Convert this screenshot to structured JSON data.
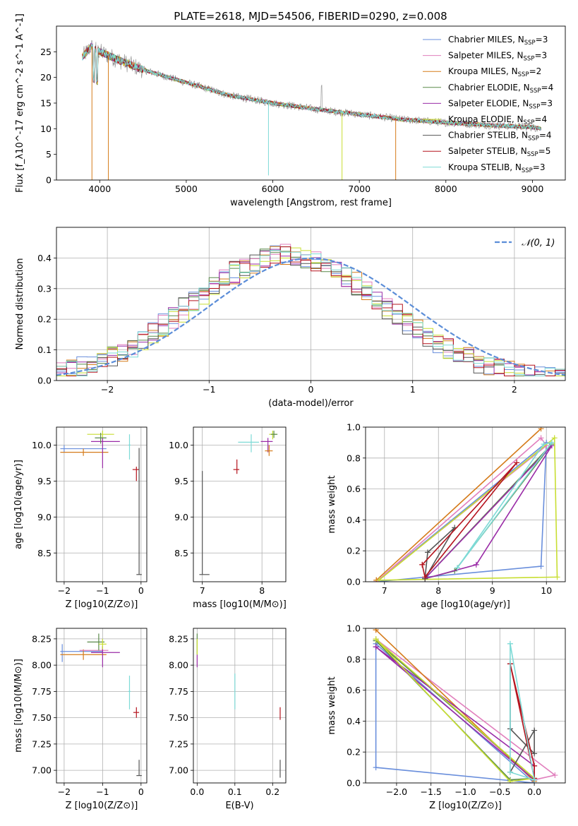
{
  "figure": {
    "title": "PLATE=2618, MJD=54506, FIBERID=0290, z=0.008"
  },
  "colors": {
    "Chabrier MILES": "#6a8fdc",
    "Salpeter MILES": "#e17fbd",
    "Kroupa MILES": "#d57b1a",
    "Chabrier ELODIE": "#5a8a4a",
    "Salpeter ELODIE": "#9a2ca7",
    "Kroupa ELODIE": "#c8de32",
    "Chabrier STELIB": "#555555",
    "Salpeter STELIB": "#b5141e",
    "Kroupa STELIB": "#7ddad6",
    "data": "#8c8c8c",
    "normal": "#5b8dd8"
  },
  "chart_data": [
    {
      "id": "spectrum",
      "type": "line",
      "xlabel": "wavelength [Angstrom, rest frame]",
      "ylabel": "Flux [f_λ10^-17 erg cm^-2 s^-1 A^-1]",
      "xlim": [
        3500,
        9380
      ],
      "ylim": [
        0,
        30
      ],
      "xticks": [
        4000,
        5000,
        6000,
        7000,
        8000,
        9000
      ],
      "yticks": [
        0,
        5,
        10,
        15,
        20,
        25
      ],
      "grid": false,
      "legend_position": "top-right",
      "legend": [
        {
          "model": "Chabrier MILES",
          "nssp": 3
        },
        {
          "model": "Salpeter MILES",
          "nssp": 3
        },
        {
          "model": "Kroupa MILES",
          "nssp": 2
        },
        {
          "model": "Chabrier ELODIE",
          "nssp": 4
        },
        {
          "model": "Salpeter ELODIE",
          "nssp": 3
        },
        {
          "model": "Kroupa ELODIE",
          "nssp": 4
        },
        {
          "model": "Chabrier STELIB",
          "nssp": 4
        },
        {
          "model": "Salpeter STELIB",
          "nssp": 5
        },
        {
          "model": "Kroupa STELIB",
          "nssp": 3
        }
      ],
      "continuum": {
        "x": [
          3800,
          3900,
          4000,
          4200,
          4500,
          5000,
          5500,
          6000,
          6500,
          7000,
          7500,
          8000,
          8500,
          9000,
          9100
        ],
        "y": [
          24,
          26,
          25,
          23.5,
          21.5,
          19,
          16.5,
          15,
          13.8,
          12.8,
          11.8,
          11.2,
          10.7,
          10.3,
          10.0
        ]
      }
    },
    {
      "id": "residuals",
      "type": "histogram",
      "xlabel": "(data-model)/error",
      "ylabel": "Normed distribution",
      "xlim": [
        -2.5,
        2.5
      ],
      "ylim": [
        0,
        0.5
      ],
      "xticks": [
        -2,
        -1,
        0,
        1,
        2
      ],
      "yticks": [
        0.0,
        0.1,
        0.2,
        0.3,
        0.4
      ],
      "grid": true,
      "legend": "𝒩(0, 1)",
      "legend_position": "top-right",
      "bin_width": 0.1
    },
    {
      "id": "age_vs_Z",
      "type": "errorbar",
      "xlabel": "Z [log10(Z/Z⊙)]",
      "ylabel": "age [log10(age/yr)]",
      "xlim": [
        -2.2,
        0.15
      ],
      "ylim": [
        8.1,
        10.25
      ],
      "xticks": [
        -2,
        -1,
        0
      ],
      "yticks": [
        8.5,
        9.0,
        9.5,
        10.0
      ],
      "grid": true,
      "points": [
        {
          "model": "Chabrier MILES",
          "x": -2.0,
          "y": 9.95,
          "x_lo": -2.1,
          "x_hi": -0.9,
          "y_lo": 9.9,
          "y_hi": 10.0
        },
        {
          "model": "Kroupa MILES",
          "x": -1.5,
          "y": 9.9,
          "x_lo": -2.1,
          "x_hi": -0.85,
          "y_lo": 9.85,
          "y_hi": 9.95
        },
        {
          "model": "Salpeter ELODIE",
          "x": -1.0,
          "y": 10.05,
          "x_lo": -1.3,
          "x_hi": -0.55,
          "y_lo": 9.68,
          "y_hi": 10.1
        },
        {
          "model": "Kroupa ELODIE",
          "x": -1.0,
          "y": 10.15,
          "x_lo": -1.4,
          "x_hi": -0.7,
          "y_lo": 10.1,
          "y_hi": 10.2
        },
        {
          "model": "Chabrier ELODIE",
          "x": -1.05,
          "y": 10.1,
          "x_lo": -1.2,
          "x_hi": -0.9,
          "y_lo": 10.02,
          "y_hi": 10.17
        },
        {
          "model": "Kroupa STELIB",
          "x": -0.3,
          "y": 10.0,
          "x_lo": -0.33,
          "x_hi": -0.27,
          "y_lo": 9.8,
          "y_hi": 10.15
        },
        {
          "model": "Salpeter STELIB",
          "x": -0.12,
          "y": 9.66,
          "x_lo": -0.22,
          "x_hi": -0.05,
          "y_lo": 9.5,
          "y_hi": 9.7
        },
        {
          "model": "Chabrier STELIB",
          "x": -0.05,
          "y": 8.2,
          "x_lo": -0.12,
          "x_hi": 0.02,
          "y_lo": 8.2,
          "y_hi": 9.96
        }
      ]
    },
    {
      "id": "age_vs_mass",
      "type": "errorbar",
      "xlabel": "mass [log10(M/M⊙)]",
      "ylabel": "",
      "xlim": [
        6.85,
        8.4
      ],
      "ylim": [
        8.1,
        10.25
      ],
      "xticks": [
        7,
        8
      ],
      "yticks": [
        8.5,
        9.0,
        9.5,
        10.0
      ],
      "grid": true,
      "points": [
        {
          "model": "Chabrier STELIB",
          "x": 7.0,
          "y": 8.2,
          "x_lo": 6.95,
          "x_hi": 7.12,
          "y_lo": 8.2,
          "y_hi": 9.64
        },
        {
          "model": "Salpeter STELIB",
          "x": 7.58,
          "y": 9.66,
          "x_lo": 7.52,
          "x_hi": 7.62,
          "y_lo": 9.6,
          "y_hi": 9.8
        },
        {
          "model": "Kroupa STELIB",
          "x": 7.82,
          "y": 10.04,
          "x_lo": 7.6,
          "x_hi": 7.95,
          "y_lo": 9.9,
          "y_hi": 10.15
        },
        {
          "model": "Salpeter ELODIE",
          "x": 8.1,
          "y": 10.05,
          "x_lo": 7.98,
          "x_hi": 8.18,
          "y_lo": 9.9,
          "y_hi": 10.1
        },
        {
          "model": "Kroupa MILES",
          "x": 8.12,
          "y": 9.92,
          "x_lo": 8.05,
          "x_hi": 8.18,
          "y_lo": 9.85,
          "y_hi": 10.0
        },
        {
          "model": "Kroupa ELODIE",
          "x": 8.18,
          "y": 10.15,
          "x_lo": 8.12,
          "x_hi": 8.24,
          "y_lo": 10.08,
          "y_hi": 10.2
        },
        {
          "model": "Chabrier ELODIE",
          "x": 8.2,
          "y": 10.15,
          "x_lo": 8.15,
          "x_hi": 8.26,
          "y_lo": 10.1,
          "y_hi": 10.2
        }
      ]
    },
    {
      "id": "weight_vs_age",
      "type": "line",
      "xlabel": "age [log10(age/yr)]",
      "ylabel": "mass weight",
      "xlim": [
        6.65,
        10.35
      ],
      "ylim": [
        0.0,
        1.0
      ],
      "xticks": [
        7,
        8,
        9,
        10
      ],
      "yticks": [
        0.0,
        0.2,
        0.4,
        0.6,
        0.8,
        1.0
      ],
      "grid": true,
      "series": [
        {
          "name": "Chabrier MILES",
          "x": [
            6.85,
            9.9,
            10.0,
            6.85
          ],
          "y": [
            0.0,
            0.1,
            0.9,
            0.0
          ]
        },
        {
          "name": "Salpeter MILES",
          "x": [
            6.85,
            9.9,
            10.0,
            6.85
          ],
          "y": [
            0.0,
            0.93,
            0.88,
            0.0
          ]
        },
        {
          "name": "Kroupa MILES",
          "x": [
            6.85,
            9.9,
            6.85
          ],
          "y": [
            0.01,
            0.99,
            0.01
          ]
        },
        {
          "name": "Chabrier ELODIE",
          "x": [
            7.75,
            8.3,
            10.1,
            7.75
          ],
          "y": [
            0.02,
            0.07,
            0.89,
            0.02
          ]
        },
        {
          "name": "Salpeter ELODIE",
          "x": [
            7.75,
            8.7,
            10.1,
            7.75
          ],
          "y": [
            0.02,
            0.11,
            0.88,
            0.02
          ]
        },
        {
          "name": "Kroupa ELODIE",
          "x": [
            6.9,
            10.15,
            10.2,
            6.9
          ],
          "y": [
            0.01,
            0.93,
            0.03,
            0.01
          ]
        },
        {
          "name": "Chabrier STELIB",
          "x": [
            7.75,
            7.8,
            8.3,
            7.75
          ],
          "y": [
            0.02,
            0.19,
            0.35,
            0.02
          ]
        },
        {
          "name": "Salpeter STELIB",
          "x": [
            7.7,
            7.75,
            9.45,
            7.7
          ],
          "y": [
            0.11,
            0.03,
            0.77,
            0.11
          ]
        },
        {
          "name": "Kroupa STELIB",
          "x": [
            8.35,
            9.95,
            10.1,
            8.35
          ],
          "y": [
            0.09,
            0.89,
            0.9,
            0.09
          ]
        }
      ]
    },
    {
      "id": "mass_vs_Z",
      "type": "errorbar",
      "xlabel": "Z [log10(Z/Z⊙)]",
      "ylabel": "mass [log10(M/M⊙)]",
      "xlim": [
        -2.2,
        0.15
      ],
      "ylim": [
        6.88,
        8.35
      ],
      "xticks": [
        -2,
        -1,
        0
      ],
      "yticks": [
        7.0,
        7.25,
        7.5,
        7.75,
        8.0,
        8.25
      ],
      "grid": true,
      "points": [
        {
          "model": "Chabrier MILES",
          "x": -2.05,
          "y": 8.13,
          "x_lo": -2.1,
          "x_hi": -1.0,
          "y_lo": 8.03,
          "y_hi": 8.2
        },
        {
          "model": "Kroupa MILES",
          "x": -1.5,
          "y": 8.1,
          "x_lo": -2.1,
          "x_hi": -0.9,
          "y_lo": 8.05,
          "y_hi": 8.15
        },
        {
          "model": "Salpeter MILES",
          "x": -1.0,
          "y": 8.14,
          "x_lo": -1.6,
          "x_hi": -0.85,
          "y_lo": 8.1,
          "y_hi": 8.18
        },
        {
          "model": "Salpeter ELODIE",
          "x": -1.0,
          "y": 8.12,
          "x_lo": -1.3,
          "x_hi": -0.55,
          "y_lo": 7.98,
          "y_hi": 8.18
        },
        {
          "model": "Chabrier ELODIE",
          "x": -1.1,
          "y": 8.22,
          "x_lo": -1.4,
          "x_hi": -0.95,
          "y_lo": 8.14,
          "y_hi": 8.3
        },
        {
          "model": "Kroupa ELODIE",
          "x": -1.0,
          "y": 8.2,
          "x_lo": -1.1,
          "x_hi": -0.9,
          "y_lo": 8.15,
          "y_hi": 8.25
        },
        {
          "model": "Kroupa STELIB",
          "x": -0.3,
          "y": 7.75,
          "x_lo": -0.33,
          "x_hi": -0.27,
          "y_lo": 7.58,
          "y_hi": 7.9
        },
        {
          "model": "Salpeter STELIB",
          "x": -0.12,
          "y": 7.55,
          "x_lo": -0.2,
          "x_hi": -0.05,
          "y_lo": 7.5,
          "y_hi": 7.6
        },
        {
          "model": "Chabrier STELIB",
          "x": -0.05,
          "y": 6.95,
          "x_lo": -0.12,
          "x_hi": 0.02,
          "y_lo": 6.95,
          "y_hi": 7.1
        }
      ]
    },
    {
      "id": "mass_vs_ebv",
      "type": "errorbar",
      "xlabel": "E(B-V)",
      "ylabel": "",
      "xlim": [
        -0.01,
        0.235
      ],
      "ylim": [
        6.88,
        8.35
      ],
      "xticks": [
        0.0,
        0.1,
        0.2
      ],
      "yticks": [
        7.0,
        7.25,
        7.5,
        7.75,
        8.0,
        8.25
      ],
      "grid": true,
      "points": [
        {
          "model": "Chabrier ELODIE",
          "x": 0.0,
          "y": 8.2,
          "x_lo": 0.0,
          "x_hi": 0.0,
          "y_lo": 8.1,
          "y_hi": 8.3
        },
        {
          "model": "Salpeter ELODIE",
          "x": 0.0,
          "y": 8.05,
          "x_lo": 0.0,
          "x_hi": 0.0,
          "y_lo": 7.98,
          "y_hi": 8.1
        },
        {
          "model": "Kroupa ELODIE",
          "x": 0.0,
          "y": 8.15,
          "x_lo": 0.0,
          "x_hi": 0.0,
          "y_lo": 8.1,
          "y_hi": 8.25
        },
        {
          "model": "Kroupa STELIB",
          "x": 0.1,
          "y": 7.75,
          "x_lo": 0.1,
          "x_hi": 0.1,
          "y_lo": 7.58,
          "y_hi": 7.92
        },
        {
          "model": "Salpeter STELIB",
          "x": 0.22,
          "y": 7.55,
          "x_lo": 0.22,
          "x_hi": 0.22,
          "y_lo": 7.48,
          "y_hi": 7.6
        },
        {
          "model": "Chabrier STELIB",
          "x": 0.22,
          "y": 7.0,
          "x_lo": 0.22,
          "x_hi": 0.22,
          "y_lo": 6.93,
          "y_hi": 7.1
        }
      ]
    },
    {
      "id": "weight_vs_Z",
      "type": "line",
      "xlabel": "Z [log10(Z/Z⊙)]",
      "ylabel": "mass weight",
      "xlim": [
        -2.45,
        0.45
      ],
      "ylim": [
        0.0,
        1.0
      ],
      "xticks": [
        -2.0,
        -1.5,
        -1.0,
        -0.5,
        0.0
      ],
      "yticks": [
        0.0,
        0.2,
        0.4,
        0.6,
        0.8,
        1.0
      ],
      "grid": true,
      "series": [
        {
          "name": "Chabrier MILES",
          "x": [
            -2.3,
            -2.3,
            0.0,
            -2.3
          ],
          "y": [
            0.9,
            0.1,
            0.0,
            0.9
          ]
        },
        {
          "name": "Salpeter MILES",
          "x": [
            -2.3,
            0.0,
            0.3,
            -2.3
          ],
          "y": [
            0.93,
            0.02,
            0.05,
            0.93
          ]
        },
        {
          "name": "Kroupa MILES",
          "x": [
            -2.3,
            0.0,
            -2.3
          ],
          "y": [
            0.99,
            0.01,
            0.99
          ]
        },
        {
          "name": "Chabrier ELODIE",
          "x": [
            -2.3,
            -0.35,
            0.0,
            -2.3
          ],
          "y": [
            0.92,
            0.02,
            0.03,
            0.92
          ]
        },
        {
          "name": "Salpeter ELODIE",
          "x": [
            -2.3,
            0.0,
            0.0,
            -2.3
          ],
          "y": [
            0.88,
            0.11,
            0.02,
            0.88
          ]
        },
        {
          "name": "Kroupa ELODIE",
          "x": [
            -2.3,
            -0.35,
            0.0,
            -2.3
          ],
          "y": [
            0.93,
            0.01,
            0.03,
            0.93
          ]
        },
        {
          "name": "Chabrier STELIB",
          "x": [
            -0.35,
            -0.35,
            0.0,
            0.0,
            -0.35
          ],
          "y": [
            0.77,
            0.35,
            0.19,
            0.34,
            0.07
          ]
        },
        {
          "name": "Salpeter STELIB",
          "x": [
            -0.35,
            0.0,
            0.0,
            -0.35
          ],
          "y": [
            0.77,
            0.11,
            0.03,
            0.77
          ]
        },
        {
          "name": "Kroupa STELIB",
          "x": [
            -0.35,
            -0.35,
            0.0,
            -0.35
          ],
          "y": [
            0.9,
            0.07,
            0.02,
            0.9
          ]
        }
      ]
    }
  ]
}
